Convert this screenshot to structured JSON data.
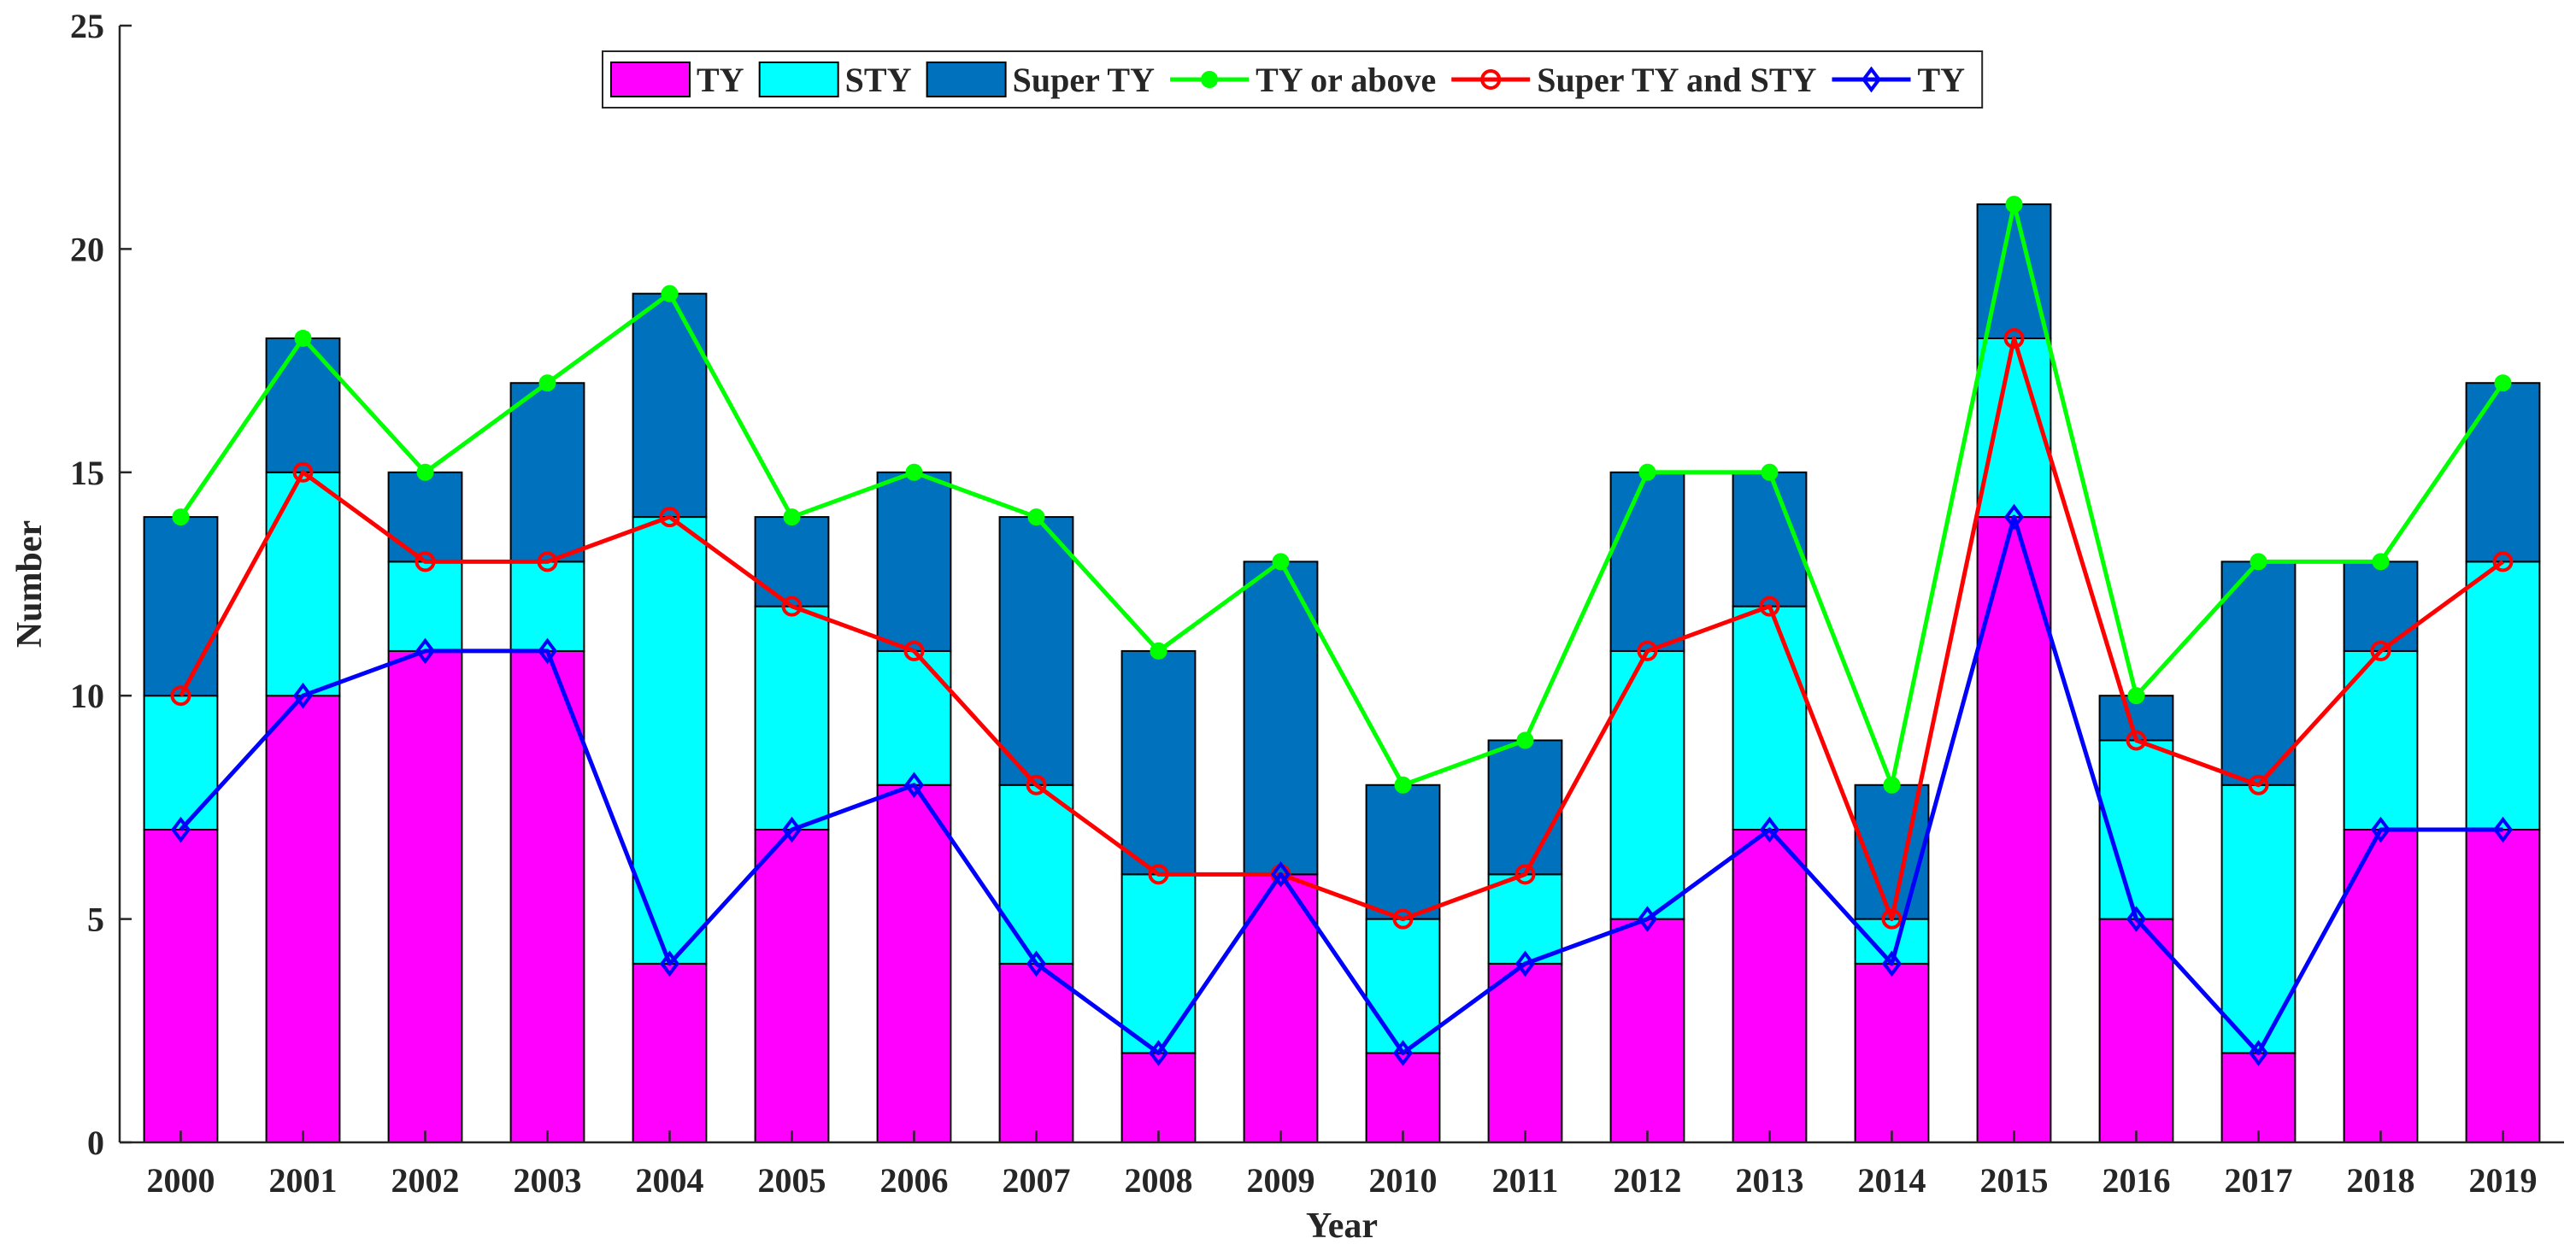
{
  "chart_data": {
    "type": "bar",
    "stacked": true,
    "categories": [
      "2000",
      "2001",
      "2002",
      "2003",
      "2004",
      "2005",
      "2006",
      "2007",
      "2008",
      "2009",
      "2010",
      "2011",
      "2012",
      "2013",
      "2014",
      "2015",
      "2016",
      "2017",
      "2018",
      "2019"
    ],
    "bar_series": [
      {
        "name": "TY",
        "color": "#ff00ff",
        "values": [
          7,
          10,
          11,
          11,
          4,
          7,
          8,
          4,
          2,
          6,
          2,
          4,
          5,
          7,
          4,
          14,
          5,
          2,
          7,
          7
        ]
      },
      {
        "name": "STY",
        "color": "#00ffff",
        "values": [
          3,
          5,
          2,
          2,
          10,
          5,
          3,
          4,
          4,
          0,
          3,
          2,
          6,
          5,
          1,
          4,
          4,
          6,
          4,
          6
        ]
      },
      {
        "name": "Super TY",
        "color": "#0072bd",
        "values": [
          4,
          3,
          2,
          4,
          5,
          2,
          4,
          6,
          5,
          7,
          3,
          3,
          4,
          3,
          3,
          3,
          1,
          5,
          2,
          4
        ]
      }
    ],
    "line_series": [
      {
        "name": "TY or above",
        "color": "#00ff00",
        "marker": "dot",
        "values": [
          14,
          18,
          15,
          17,
          19,
          14,
          15,
          14,
          11,
          13,
          8,
          9,
          15,
          15,
          8,
          21,
          10,
          13,
          13,
          17
        ]
      },
      {
        "name": "Super TY and STY",
        "color": "#ff0000",
        "marker": "circle",
        "values": [
          10,
          15,
          13,
          13,
          14,
          12,
          11,
          8,
          6,
          6,
          5,
          6,
          11,
          12,
          5,
          18,
          9,
          8,
          11,
          13
        ]
      },
      {
        "name": "TY",
        "color": "#0000ff",
        "marker": "diamond",
        "values": [
          7,
          10,
          11,
          11,
          4,
          7,
          8,
          4,
          2,
          6,
          2,
          4,
          5,
          7,
          4,
          14,
          5,
          2,
          7,
          7
        ]
      }
    ],
    "title": "",
    "xlabel": "Year",
    "ylabel": "Number",
    "ylim": [
      0,
      25
    ],
    "yticks": [
      "0",
      "5",
      "10",
      "15",
      "20",
      "25"
    ],
    "grid": false,
    "legend": "top-center, horizontal"
  }
}
